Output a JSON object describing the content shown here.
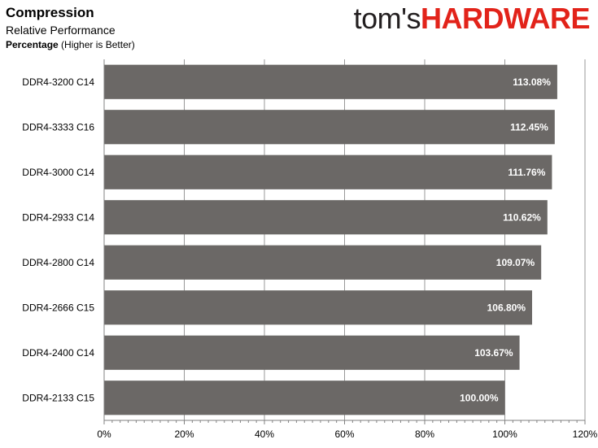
{
  "header": {
    "title": "Compression",
    "subtitle": "Relative Performance",
    "caption_bold": "Percentage",
    "caption_rest": " (Higher is Better)"
  },
  "logo": {
    "part1": "tom's",
    "part2": "HARDWARE"
  },
  "colors": {
    "bar": "#6b6866",
    "grid": "#7f7f7f",
    "axis": "#808080",
    "logo_red": "#e2231a"
  },
  "chart_data": {
    "type": "bar",
    "orientation": "horizontal",
    "title": "Compression",
    "subtitle": "Relative Performance",
    "xlabel": "Percentage (Higher is Better)",
    "ylabel": "",
    "categories": [
      "DDR4-3200 C14",
      "DDR4-3333 C16",
      "DDR4-3000 C14",
      "DDR4-2933 C14",
      "DDR4-2800 C14",
      "DDR4-2666 C15",
      "DDR4-2400 C14",
      "DDR4-2133 C15"
    ],
    "values": [
      113.08,
      112.45,
      111.76,
      110.62,
      109.07,
      106.8,
      103.67,
      100.0
    ],
    "value_labels": [
      "113.08%",
      "112.45%",
      "111.76%",
      "110.62%",
      "109.07%",
      "106.80%",
      "103.67%",
      "100.00%"
    ],
    "xlim": [
      0,
      120
    ],
    "xticks": [
      0,
      20,
      40,
      60,
      80,
      100,
      120
    ],
    "xtick_labels": [
      "0%",
      "20%",
      "40%",
      "60%",
      "80%",
      "100%",
      "120%"
    ],
    "grid": true,
    "legend": "none"
  }
}
